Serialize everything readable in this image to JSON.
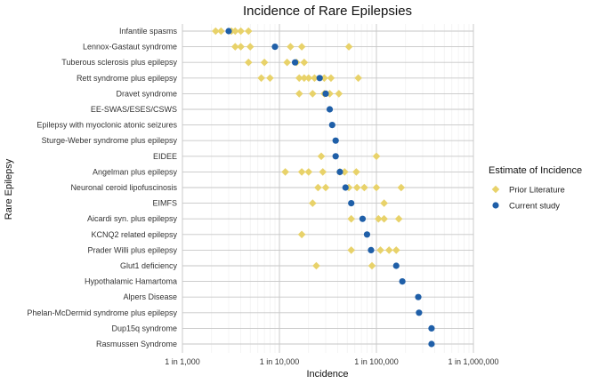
{
  "chart_data": {
    "type": "scatter",
    "title": "Incidence of Rare Epilepsies",
    "xlabel": "Incidence",
    "ylabel": "Rare Epilepsy",
    "x_scale": "log",
    "xlim": [
      1000,
      1000000
    ],
    "x_ticks": [
      1000,
      10000,
      100000,
      1000000
    ],
    "x_tick_labels": [
      "1 in 1,000",
      "1 in 10,000",
      "1 in 100,000",
      "1 in 1,000,000"
    ],
    "grid": true,
    "legend_position": "right",
    "legend_title": "Estimate of Incidence",
    "categories": [
      "Infantile spasms",
      "Lennox-Gastaut syndrome",
      "Tuberous sclerosis plus epilepsy",
      "Rett syndrome plus epilepsy",
      "Dravet syndrome",
      "EE-SWAS/ESES/CSWS",
      "Epilepsy with myoclonic atonic seizures",
      "Sturge-Weber syndrome plus epilepsy",
      "EIDEE",
      "Angelman plus epilepsy",
      "Neuronal ceroid lipofuscinosis",
      "EIMFS",
      "Aicardi syn. plus epilepsy",
      "KCNQ2 related epilepsy",
      "Prader Willi plus epilepsy",
      "Glut1 deficiency",
      "Hypothalamic Hamartoma",
      "Alpers Disease",
      "Phelan-McDermid syndrome plus epilepsy",
      "Dup15q syndrome",
      "Rasmussen Syndrome"
    ],
    "series": [
      {
        "name": "Prior Literature",
        "color": "#E8D26A",
        "points": [
          {
            "category": "Infantile spasms",
            "x": [
              2200,
              2500,
              3200,
              3500,
              4000,
              4800
            ]
          },
          {
            "category": "Lennox-Gastaut syndrome",
            "x": [
              3500,
              4000,
              5000,
              13000,
              17000,
              52000
            ]
          },
          {
            "category": "Tuberous sclerosis plus epilepsy",
            "x": [
              4800,
              7000,
              12000,
              15000,
              18000
            ]
          },
          {
            "category": "Rett syndrome plus epilepsy",
            "x": [
              6500,
              8000,
              16000,
              18000,
              20000,
              23000,
              29000,
              34000,
              65000
            ]
          },
          {
            "category": "Dravet syndrome",
            "x": [
              16000,
              22000,
              29000,
              33000,
              41000
            ]
          },
          {
            "category": "EIDEE",
            "x": [
              27000,
              100000
            ]
          },
          {
            "category": "Angelman plus epilepsy",
            "x": [
              11500,
              17000,
              20000,
              28000,
              42000,
              47000,
              62000
            ]
          },
          {
            "category": "Neuronal ceroid lipofuscinosis",
            "x": [
              25000,
              30000,
              52000,
              63000,
              75000,
              100000,
              180000
            ]
          },
          {
            "category": "EIMFS",
            "x": [
              22000,
              120000
            ]
          },
          {
            "category": "Aicardi syn. plus epilepsy",
            "x": [
              55000,
              105000,
              120000,
              170000
            ]
          },
          {
            "category": "KCNQ2 related epilepsy",
            "x": [
              17000
            ]
          },
          {
            "category": "Prader Willi plus epilepsy",
            "x": [
              55000,
              110000,
              135000,
              160000
            ]
          },
          {
            "category": "Glut1 deficiency",
            "x": [
              24000,
              90000
            ]
          }
        ]
      },
      {
        "name": "Current study",
        "color": "#1F5FA8",
        "points": [
          {
            "category": "Infantile spasms",
            "x": [
              3000
            ]
          },
          {
            "category": "Lennox-Gastaut syndrome",
            "x": [
              9000
            ]
          },
          {
            "category": "Tuberous sclerosis plus epilepsy",
            "x": [
              14500
            ]
          },
          {
            "category": "Rett syndrome plus epilepsy",
            "x": [
              26000
            ]
          },
          {
            "category": "Dravet syndrome",
            "x": [
              30000
            ]
          },
          {
            "category": "EE-SWAS/ESES/CSWS",
            "x": [
              33000
            ]
          },
          {
            "category": "Epilepsy with myoclonic atonic seizures",
            "x": [
              35000
            ]
          },
          {
            "category": "Sturge-Weber syndrome plus epilepsy",
            "x": [
              38000
            ]
          },
          {
            "category": "EIDEE",
            "x": [
              38000
            ]
          },
          {
            "category": "Angelman plus epilepsy",
            "x": [
              42000
            ]
          },
          {
            "category": "Neuronal ceroid lipofuscinosis",
            "x": [
              48000
            ]
          },
          {
            "category": "EIMFS",
            "x": [
              55000
            ]
          },
          {
            "category": "Aicardi syn. plus epilepsy",
            "x": [
              72000
            ]
          },
          {
            "category": "KCNQ2 related epilepsy",
            "x": [
              80000
            ]
          },
          {
            "category": "Prader Willi plus epilepsy",
            "x": [
              88000
            ]
          },
          {
            "category": "Glut1 deficiency",
            "x": [
              160000
            ]
          },
          {
            "category": "Hypothalamic Hamartoma",
            "x": [
              185000
            ]
          },
          {
            "category": "Alpers Disease",
            "x": [
              270000
            ]
          },
          {
            "category": "Phelan-McDermid syndrome plus epilepsy",
            "x": [
              275000
            ]
          },
          {
            "category": "Dup15q syndrome",
            "x": [
              370000
            ]
          },
          {
            "category": "Rasmussen Syndrome",
            "x": [
              370000
            ]
          }
        ]
      }
    ]
  }
}
